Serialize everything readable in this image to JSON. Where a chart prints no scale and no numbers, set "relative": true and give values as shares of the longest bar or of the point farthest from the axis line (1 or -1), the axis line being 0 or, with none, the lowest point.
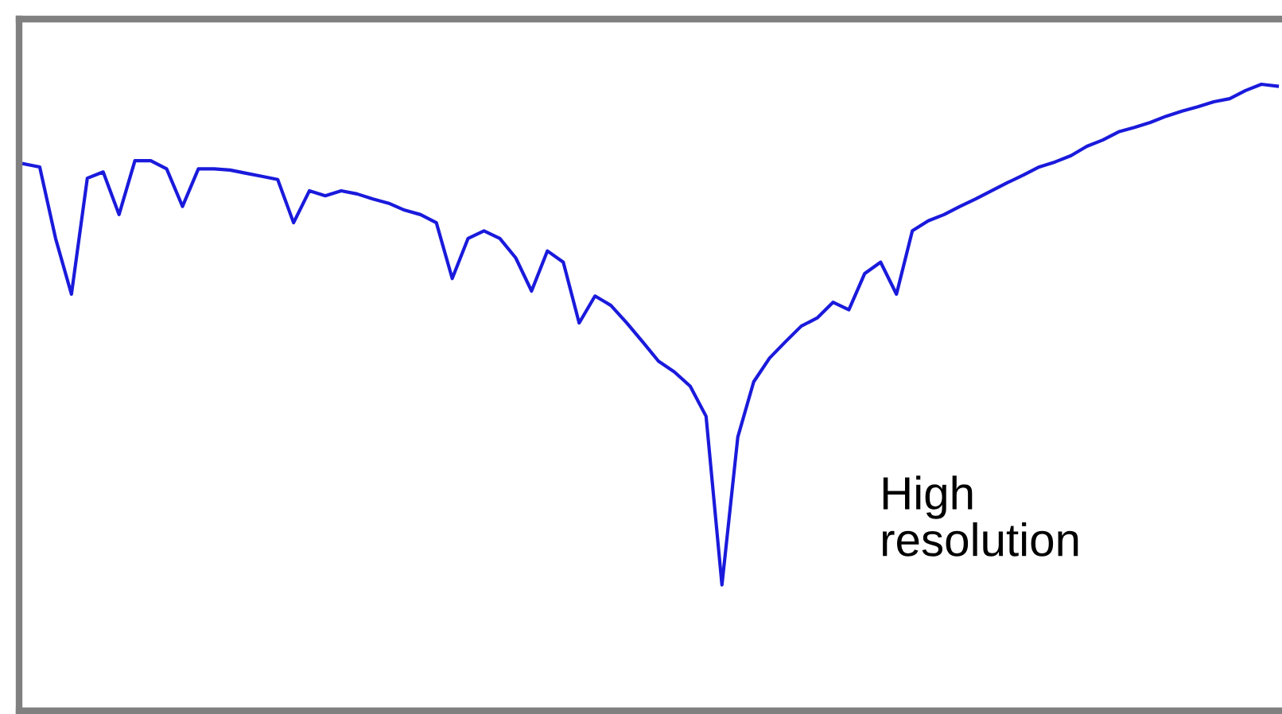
{
  "chart_data": {
    "type": "line",
    "relative": true,
    "annotations": [
      "High\nresolution"
    ],
    "categories": [
      null,
      null,
      null,
      null,
      null,
      null,
      null,
      null,
      null,
      null,
      null,
      null,
      null,
      null,
      null,
      null,
      null,
      null,
      null,
      null,
      null,
      null,
      null,
      null,
      null,
      null,
      null,
      null,
      null,
      null,
      null,
      null,
      null,
      null,
      null,
      null,
      null,
      null,
      null,
      null,
      null,
      null,
      null,
      null,
      null,
      null,
      null,
      null,
      null,
      null,
      null,
      null,
      null,
      null,
      null,
      null,
      null,
      null,
      null,
      null,
      null,
      null,
      null,
      null,
      null,
      null,
      null,
      null,
      null,
      null,
      null,
      null,
      null,
      null,
      null,
      null,
      null,
      null,
      null,
      null
    ],
    "series": [
      {
        "color": "#1a1adc",
        "values": [
          0.873,
          0.868,
          0.754,
          0.665,
          0.85,
          0.86,
          0.792,
          0.878,
          0.878,
          0.865,
          0.805,
          0.865,
          0.865,
          0.863,
          0.858,
          0.853,
          0.848,
          0.779,
          0.83,
          0.822,
          0.83,
          0.825,
          0.817,
          0.81,
          0.799,
          0.792,
          0.779,
          0.69,
          0.754,
          0.766,
          0.754,
          0.723,
          0.67,
          0.734,
          0.716,
          0.619,
          0.662,
          0.647,
          0.619,
          0.589,
          0.558,
          0.541,
          0.518,
          0.47,
          0.201,
          0.437,
          0.525,
          0.563,
          0.589,
          0.614,
          0.627,
          0.652,
          0.64,
          0.698,
          0.716,
          0.665,
          0.766,
          0.782,
          0.792,
          0.805,
          0.817,
          0.83,
          0.843,
          0.855,
          0.868,
          0.876,
          0.886,
          0.901,
          0.911,
          0.924,
          0.931,
          0.939,
          0.949,
          0.957,
          0.964,
          0.972,
          0.977,
          0.99,
          1,
          0.997
        ]
      }
    ]
  }
}
